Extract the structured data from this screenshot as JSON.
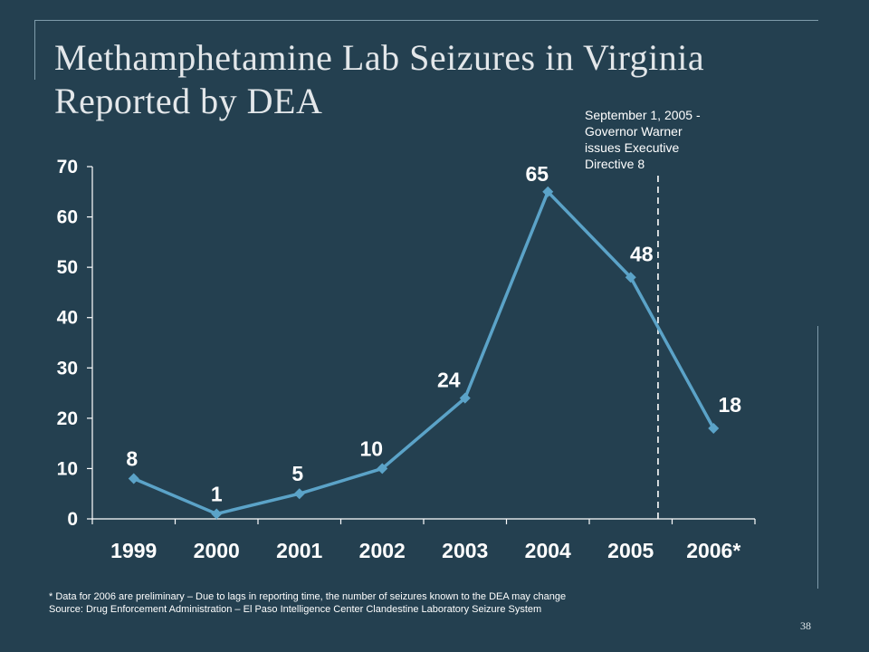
{
  "slide": {
    "title": "Methamphetamine Lab Seizures in Virginia Reported by DEA",
    "annotation": "September 1, 2005 -\nGovernor Warner\nissues Executive\nDirective 8",
    "footnote_line1": "* Data for 2006 are preliminary – Due to lags in reporting time, the number of seizures known to the DEA may change",
    "footnote_line2": "Source:  Drug Enforcement Administration – El Paso Intelligence Center Clandestine Laboratory Seizure System",
    "page_number": "38"
  },
  "chart_data": {
    "type": "line",
    "title": "",
    "xlabel": "",
    "ylabel": "",
    "categories": [
      "1999",
      "2000",
      "2001",
      "2002",
      "2003",
      "2004",
      "2005",
      "2006*"
    ],
    "series": [
      {
        "values": [
          8,
          1,
          5,
          10,
          24,
          65,
          48,
          18
        ],
        "color": "#5ba3c8"
      }
    ],
    "data_labels": [
      "8",
      "1",
      "5",
      "10",
      "24",
      "65",
      "48",
      "18"
    ],
    "ylim": [
      0,
      70
    ],
    "yticks": [
      0,
      10,
      20,
      30,
      40,
      50,
      60,
      70
    ],
    "grid": false,
    "legend": "none",
    "marker_line": {
      "x": 6.33,
      "style": "dashed",
      "color": "#ffffff"
    }
  }
}
